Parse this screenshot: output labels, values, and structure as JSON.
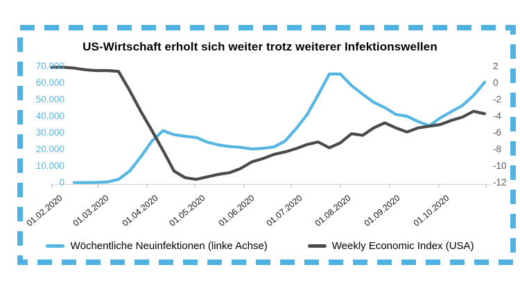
{
  "page": {
    "title": "US-Wirtschaft erholt sich weiter trotz weiterer Infektionswellen"
  },
  "colors": {
    "accent_blue": "#55b6e3",
    "border_blue": "#4fb2e0",
    "line_gray": "#4a4a4a",
    "right_axis_text": "#595959",
    "x_axis_text": "#141414",
    "axis_line": "#d8d8d8",
    "tick_mark": "#bdbdbd"
  },
  "legend": [
    {
      "label": "Wöchentliche Neuinfektionen (linke Achse)",
      "marker": "blue-line"
    },
    {
      "label": "Weekly Economic Index (USA)",
      "marker": "gray-line"
    }
  ],
  "chart_data": {
    "type": "line",
    "title": "US-Wirtschaft erholt sich weiter trotz weiterer Infektionswellen",
    "x_frequency": "weekly",
    "x_tick_labels": [
      "01.02.2020",
      "01.03.2020",
      "01.04.2020",
      "01.05.2020",
      "01.06.2020",
      "01.07.2020",
      "01.08.2020",
      "01.09.2020",
      "01.10.2020"
    ],
    "x_tick_day_offsets": [
      0,
      29,
      60,
      90,
      121,
      151,
      182,
      213,
      244
    ],
    "x_total_days": 273,
    "grid": false,
    "legend_position": "bottom",
    "left_axis": {
      "label_for": "Wöchentliche Neuinfektionen",
      "tick_labels": [
        "70.000",
        "60.000",
        "50.000",
        "40.000",
        "30.000",
        "20.000",
        "10.000",
        "0"
      ],
      "tick_values": [
        70000,
        60000,
        50000,
        40000,
        30000,
        20000,
        10000,
        0
      ],
      "min": 0,
      "max": 70000
    },
    "right_axis": {
      "label_for": "Weekly Economic Index (USA)",
      "tick_labels": [
        "2",
        "0",
        "-2",
        "-4",
        "-6",
        "-8",
        "-10",
        "-12"
      ],
      "tick_values": [
        2,
        0,
        -2,
        -4,
        -6,
        -8,
        -10,
        -12
      ],
      "min": -12,
      "max": 2
    },
    "series": [
      {
        "name": "Wöchentliche Neuinfektionen (linke Achse)",
        "axis": "left",
        "color": "#55b6e3",
        "values": [
          null,
          null,
          100,
          100,
          150,
          400,
          2000,
          7000,
          15500,
          25000,
          31300,
          28900,
          27900,
          27200,
          24400,
          22700,
          21800,
          21300,
          20300,
          20700,
          21500,
          25000,
          32500,
          41000,
          53000,
          65400,
          65400,
          58500,
          53300,
          48400,
          45200,
          41100,
          40000,
          36800,
          34300,
          39000,
          42800,
          46500,
          52500,
          60500
        ]
      },
      {
        "name": "Weekly Economic Index (USA)",
        "axis": "right",
        "color": "#4a4a4a",
        "values": [
          1.9,
          1.9,
          1.8,
          1.6,
          1.5,
          1.5,
          1.4,
          -0.9,
          -3.4,
          -5.7,
          -8.1,
          -10.6,
          -11.4,
          -11.6,
          -11.3,
          -11.0,
          -10.8,
          -10.3,
          -9.5,
          -9.1,
          -8.6,
          -8.3,
          -7.9,
          -7.4,
          -7.1,
          -7.8,
          -7.2,
          -6.1,
          -6.3,
          -5.4,
          -4.8,
          -5.4,
          -5.9,
          -5.4,
          -5.2,
          -5.0,
          -4.5,
          -4.1,
          -3.4,
          -3.7
        ]
      }
    ]
  }
}
